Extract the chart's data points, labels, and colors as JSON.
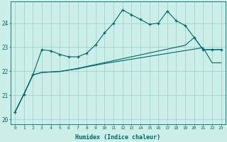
{
  "xlabel": "Humidex (Indice chaleur)",
  "bg_color": "#cceee8",
  "grid_color": "#99cccc",
  "line_color": "#006666",
  "xlim": [
    -0.5,
    23.5
  ],
  "ylim": [
    19.8,
    24.9
  ],
  "yticks": [
    20,
    21,
    22,
    23,
    24
  ],
  "xticks": [
    0,
    1,
    2,
    3,
    4,
    5,
    6,
    7,
    8,
    9,
    10,
    11,
    12,
    13,
    14,
    15,
    16,
    17,
    18,
    19,
    20,
    21,
    22,
    23
  ],
  "line1_y": [
    20.3,
    21.05,
    21.85,
    22.9,
    22.85,
    22.7,
    22.6,
    22.6,
    22.75,
    23.1,
    23.6,
    24.0,
    24.55,
    24.35,
    24.15,
    23.95,
    24.0,
    24.5,
    24.1,
    23.9,
    23.4,
    22.9,
    22.9,
    22.9
  ],
  "line2_y": [
    20.3,
    21.05,
    21.85,
    21.95,
    21.97,
    21.99,
    22.05,
    22.1,
    22.18,
    22.25,
    22.32,
    22.38,
    22.44,
    22.5,
    22.56,
    22.62,
    22.68,
    22.74,
    22.8,
    22.86,
    22.92,
    22.98,
    22.35,
    22.35
  ],
  "line3_y": [
    20.3,
    21.05,
    21.85,
    21.95,
    21.97,
    21.99,
    22.05,
    22.12,
    22.2,
    22.28,
    22.36,
    22.44,
    22.52,
    22.6,
    22.68,
    22.76,
    22.84,
    22.92,
    23.0,
    23.08,
    23.4,
    22.9,
    22.9,
    22.9
  ]
}
